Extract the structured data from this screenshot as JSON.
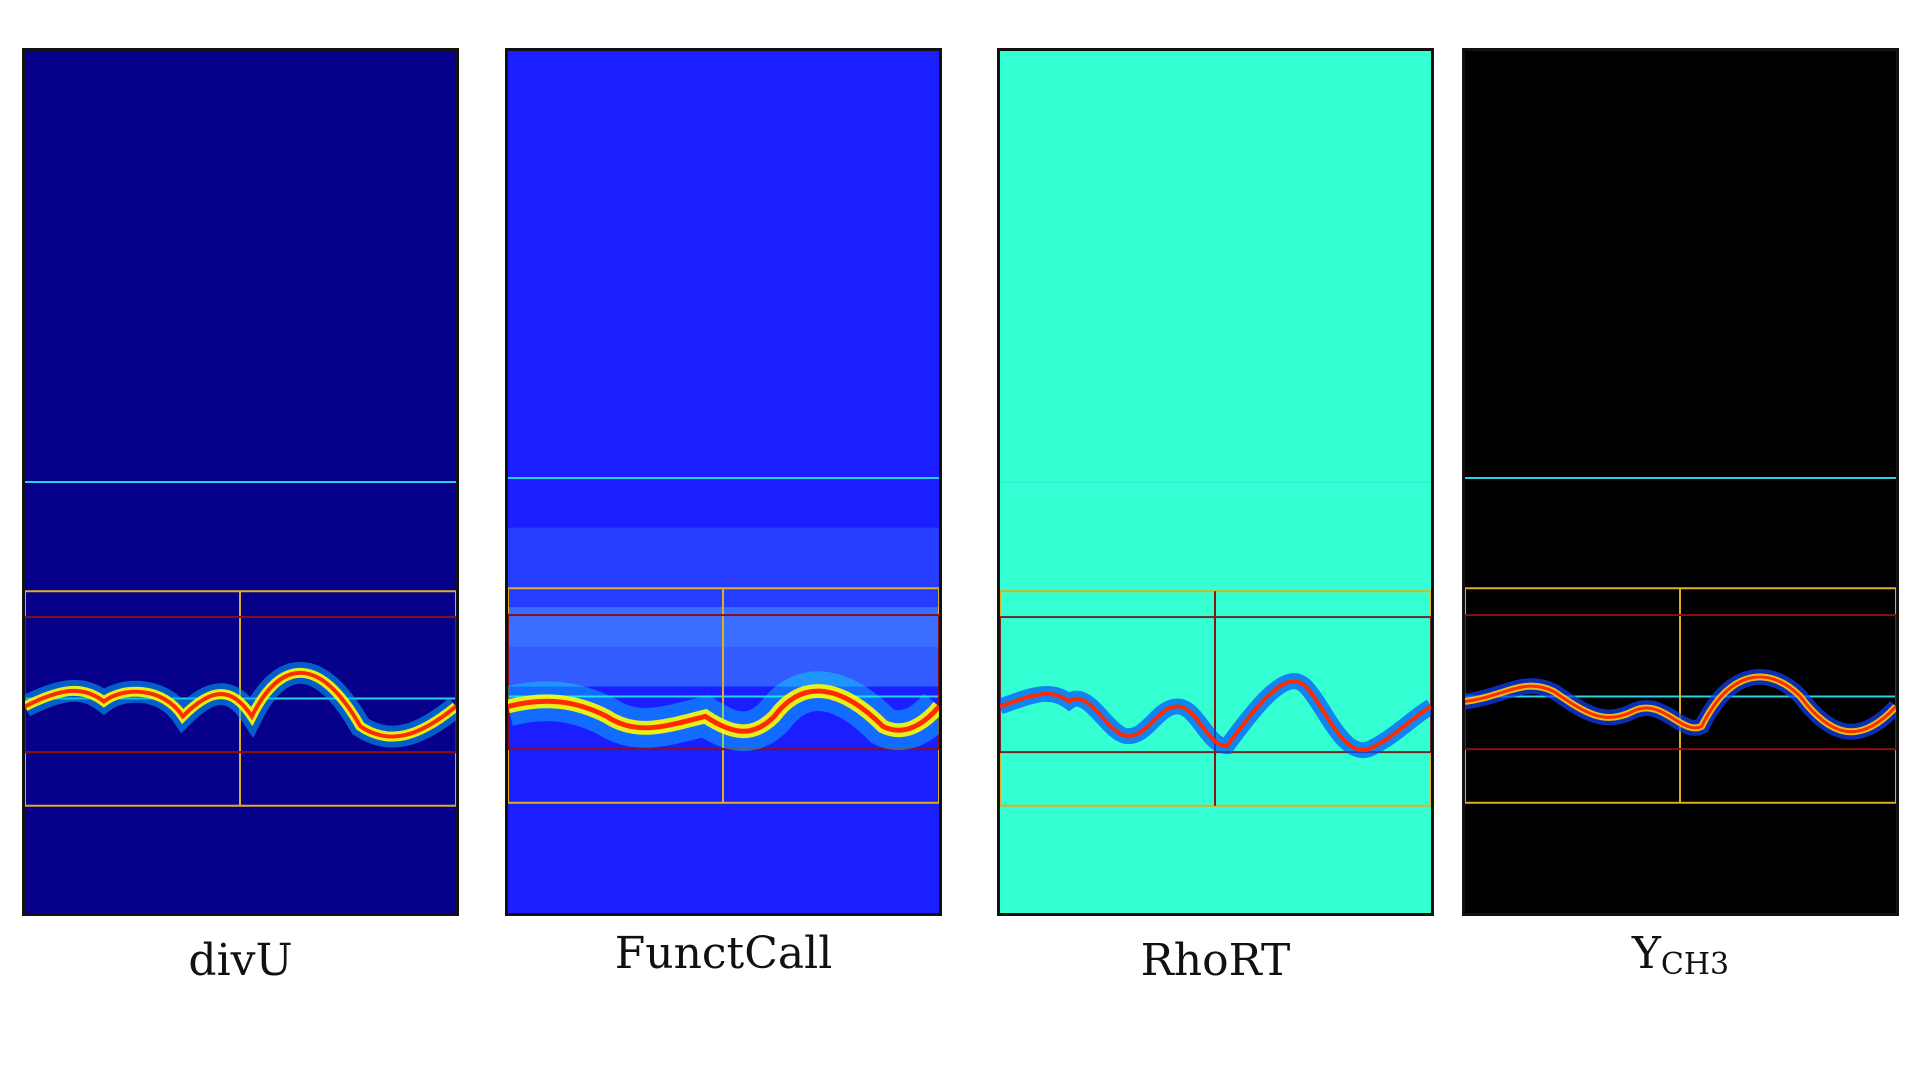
{
  "panels": [
    {
      "id": "divu",
      "label": "divU",
      "background": "#07008a"
    },
    {
      "id": "functcall",
      "label": "FunctCall",
      "background": "#1b1eff"
    },
    {
      "id": "rhort",
      "label": "RhoRT",
      "background": "#33ffd2"
    },
    {
      "id": "ych3",
      "label_main": "Y",
      "label_sub": "CH3",
      "background": "#000000"
    }
  ],
  "colors": {
    "frame": "#111111",
    "level1_box": "#e0b020",
    "level2_box": "#8a1010",
    "cyan_line": "#27d3e0",
    "flame_core": "#ff2a00",
    "flame_mid": "#ffff00",
    "flame_outer": "#00ffff"
  }
}
